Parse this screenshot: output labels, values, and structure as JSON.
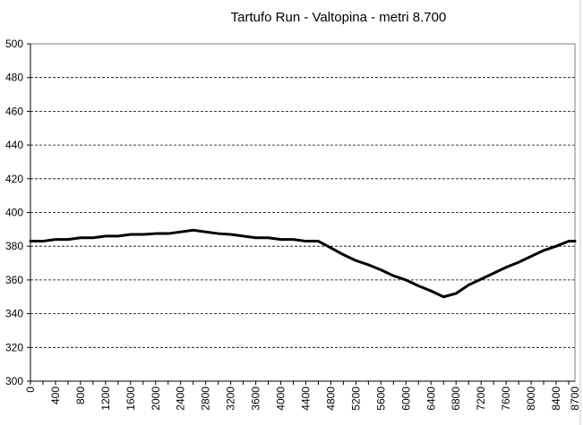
{
  "chart_data": {
    "type": "line",
    "title": "Tartufo Run - Valtopina - metri 8.700",
    "xlabel": "",
    "ylabel": "",
    "ylim": [
      300,
      500
    ],
    "xlim": [
      0,
      8700
    ],
    "yticks": [
      "300",
      "320",
      "340",
      "360",
      "380",
      "400",
      "420",
      "440",
      "460",
      "480",
      "500"
    ],
    "xticks": [
      "0",
      "400",
      "800",
      "1200",
      "1600",
      "2000",
      "2400",
      "2800",
      "3200",
      "3600",
      "4000",
      "4400",
      "4800",
      "5200",
      "5600",
      "6000",
      "6400",
      "6800",
      "7200",
      "7600",
      "8000",
      "8400",
      "8700"
    ],
    "grid": true,
    "legend": "none",
    "series": [
      {
        "color": "#000000",
        "x": [
          0,
          200,
          400,
          600,
          800,
          1000,
          1200,
          1400,
          1600,
          1800,
          2000,
          2200,
          2400,
          2600,
          2800,
          3000,
          3200,
          3400,
          3600,
          3800,
          4000,
          4200,
          4400,
          4600,
          4800,
          5000,
          5200,
          5400,
          5600,
          5800,
          6000,
          6200,
          6400,
          6600,
          6800,
          7000,
          7200,
          7400,
          7600,
          7800,
          8000,
          8200,
          8400,
          8600,
          8700
        ],
        "y": [
          383,
          383,
          384,
          384,
          385,
          385,
          386,
          386,
          387,
          387,
          387.5,
          387.5,
          388.5,
          389.5,
          388.5,
          387.5,
          387,
          386,
          385,
          385,
          384,
          384,
          383,
          383,
          379,
          375,
          371.5,
          369,
          366,
          362.5,
          360,
          356.5,
          353.5,
          350,
          352,
          357,
          360.5,
          364,
          367.5,
          370.5,
          374,
          377.5,
          380,
          383,
          383
        ]
      }
    ]
  }
}
